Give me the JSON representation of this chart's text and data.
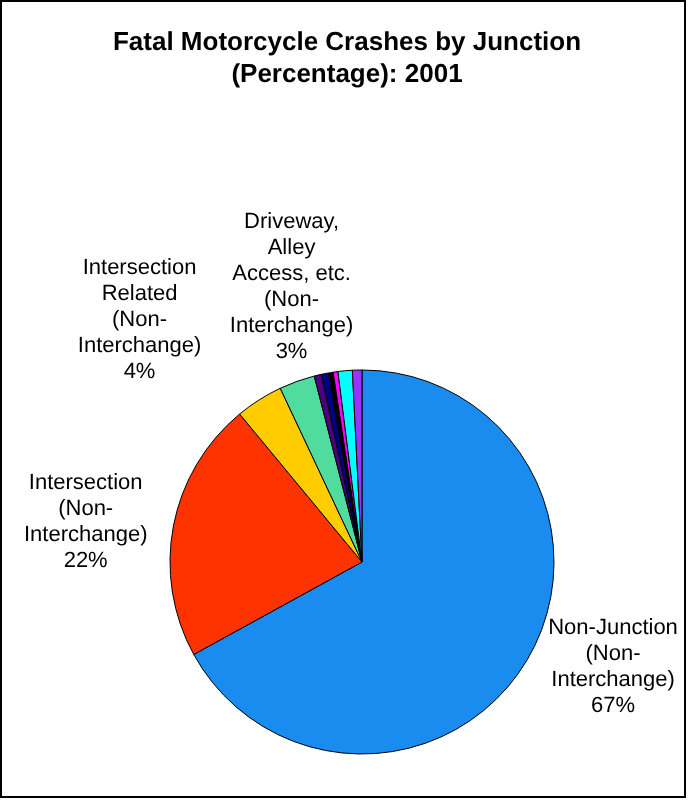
{
  "chart_data": {
    "type": "pie",
    "title": "Fatal Motorcycle Crashes by Junction (Percentage): 2001",
    "categories": [
      "Non-Junction (Non-Interchange)",
      "Intersection (Non-Interchange)",
      "Intersection Related (Non-Interchange)",
      "Driveway, Alley Access, etc. (Non-Interchange)",
      null,
      null,
      null,
      null,
      null,
      null
    ],
    "values": [
      67,
      22,
      4,
      3,
      0.6,
      0.6,
      0.4,
      0.4,
      1.2,
      0.8
    ],
    "value_labels": [
      "67%",
      "22%",
      "4%",
      "3%",
      null,
      null,
      null,
      null,
      null,
      null
    ],
    "colors": [
      "#1a8cf0",
      "#ff3300",
      "#ffcc00",
      "#50dc9c",
      "#4b0082",
      "#000080",
      "#000000",
      "#ff00ff",
      "#00ffff",
      "#9933ff"
    ],
    "legend": false
  }
}
